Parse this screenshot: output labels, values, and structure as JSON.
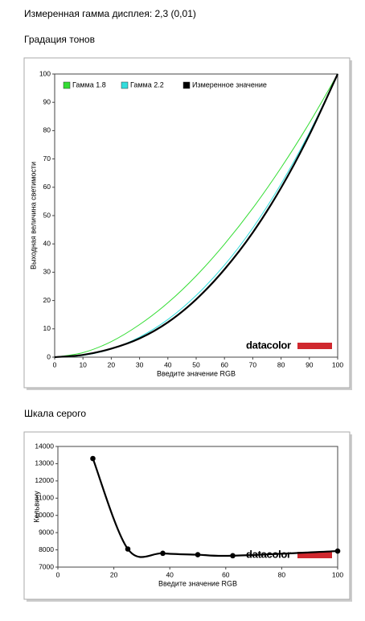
{
  "page_title": "Измеренная гамма дисплея: 2,3 (0,01)",
  "chart_data": [
    {
      "type": "line",
      "title": "Градация тонов",
      "x_label": "Введите значение RGB",
      "y_label": "Выходная величина светимости",
      "logo": "datacolor",
      "x": [
        0,
        10,
        20,
        30,
        40,
        50,
        60,
        70,
        80,
        90,
        100
      ],
      "series": [
        {
          "name": "Гамма 1.8",
          "color": "#33dd33",
          "values": [
            0,
            1.6,
            5.5,
            11.5,
            19.2,
            28.7,
            39.9,
            52.6,
            66.9,
            82.7,
            100
          ]
        },
        {
          "name": "Гамма 2.2",
          "color": "#33dddd",
          "values": [
            0,
            0.6,
            2.9,
            7.1,
            13.3,
            21.8,
            32.5,
            45.6,
            61.2,
            79.3,
            100
          ]
        },
        {
          "name": "Измеренное значение",
          "color": "#000000",
          "values": [
            0,
            0.8,
            3.0,
            6.6,
            12.3,
            20.4,
            31.0,
            44.0,
            59.8,
            78.5,
            100
          ]
        }
      ],
      "xlim": [
        0,
        100
      ],
      "xticks": [
        0,
        10,
        20,
        30,
        40,
        50,
        60,
        70,
        80,
        90,
        100
      ],
      "ylim": [
        0,
        100
      ],
      "yticks": [
        0,
        10,
        20,
        30,
        40,
        50,
        60,
        70,
        80,
        90,
        100
      ]
    },
    {
      "type": "line",
      "title": "Шкала серого",
      "x_label": "Введите значение RGB",
      "y_label": "Кельвину",
      "logo": "datacolor",
      "x": [
        12.5,
        25,
        37.5,
        50,
        62.5,
        100
      ],
      "series": [
        {
          "color": "#000000",
          "values": [
            13300,
            8050,
            7800,
            7720,
            7660,
            7930
          ]
        }
      ],
      "xlim": [
        0,
        100
      ],
      "xticks": [
        0,
        20,
        40,
        60,
        80,
        100
      ],
      "ylim": [
        7000,
        14000
      ],
      "yticks": [
        7000,
        8000,
        9000,
        10000,
        11000,
        12000,
        13000,
        14000
      ]
    }
  ]
}
